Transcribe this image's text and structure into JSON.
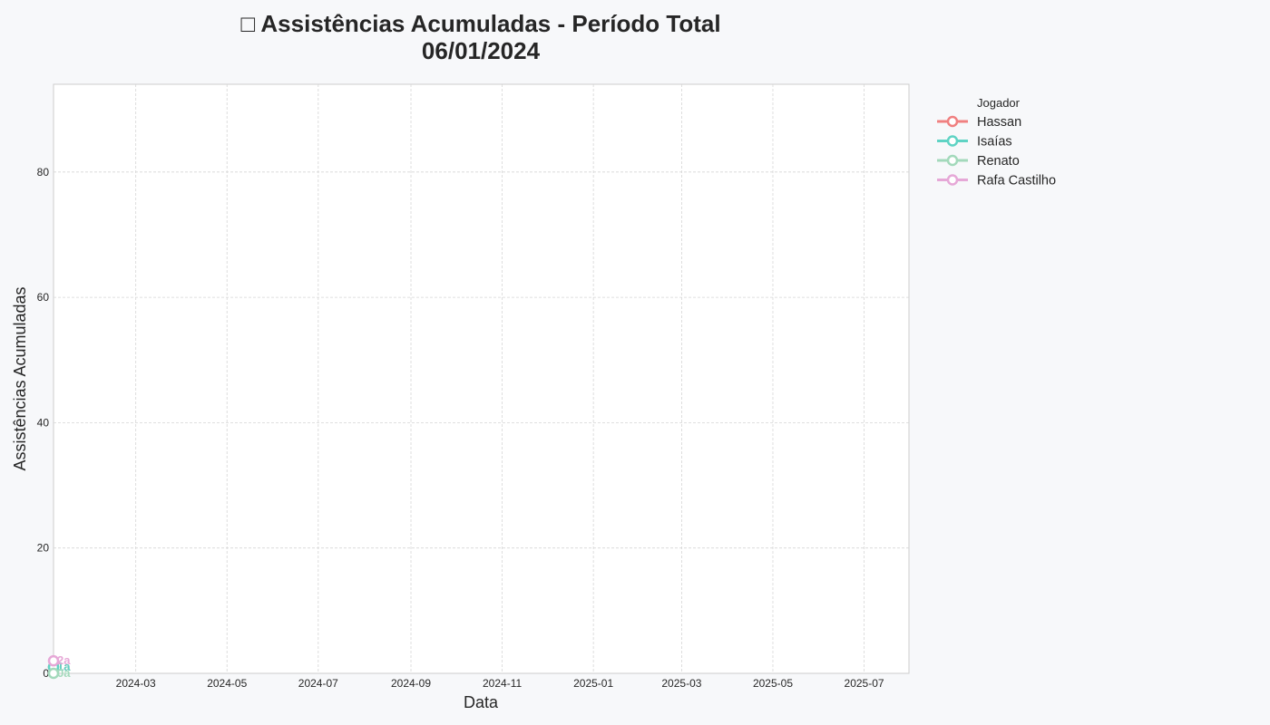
{
  "chart_data": {
    "type": "line",
    "title": "□ Assistências Acumuladas - Período Total",
    "subtitle": "06/01/2024",
    "xlabel": "Data",
    "ylabel": "Assistências Acumuladas",
    "x_type": "date",
    "xlim": [
      "2024-01-06",
      "2025-07-31"
    ],
    "ylim": [
      0,
      94
    ],
    "x_ticks": [
      "2024-03-01",
      "2024-05-01",
      "2024-07-01",
      "2024-09-01",
      "2024-11-01",
      "2025-01-01",
      "2025-03-01",
      "2025-05-01",
      "2025-07-01"
    ],
    "x_tick_labels": [
      "2024-03",
      "2024-05",
      "2024-07",
      "2024-09",
      "2024-11",
      "2025-01",
      "2025-03",
      "2025-05",
      "2025-07"
    ],
    "y_ticks": [
      0,
      20,
      40,
      60,
      80
    ],
    "y_tick_labels": [
      "0",
      "20",
      "40",
      "60",
      "80"
    ],
    "grid": true,
    "legend": {
      "title": "Jogador",
      "placement": "outside-top-right"
    },
    "series": [
      {
        "name": "Hassan",
        "color": "#f08080",
        "points": [
          {
            "x": "2024-01-06",
            "y": 1
          }
        ],
        "end_label": "1a"
      },
      {
        "name": "Isaías",
        "color": "#5fd3c4",
        "points": [
          {
            "x": "2024-01-06",
            "y": 1
          }
        ],
        "end_label": "1a"
      },
      {
        "name": "Renato",
        "color": "#a3d9bb",
        "points": [
          {
            "x": "2024-01-06",
            "y": 0
          }
        ],
        "end_label": "0a"
      },
      {
        "name": "Rafa Castilho",
        "color": "#e6a8d7",
        "points": [
          {
            "x": "2024-01-06",
            "y": 2
          }
        ],
        "end_label": "2a"
      }
    ]
  }
}
